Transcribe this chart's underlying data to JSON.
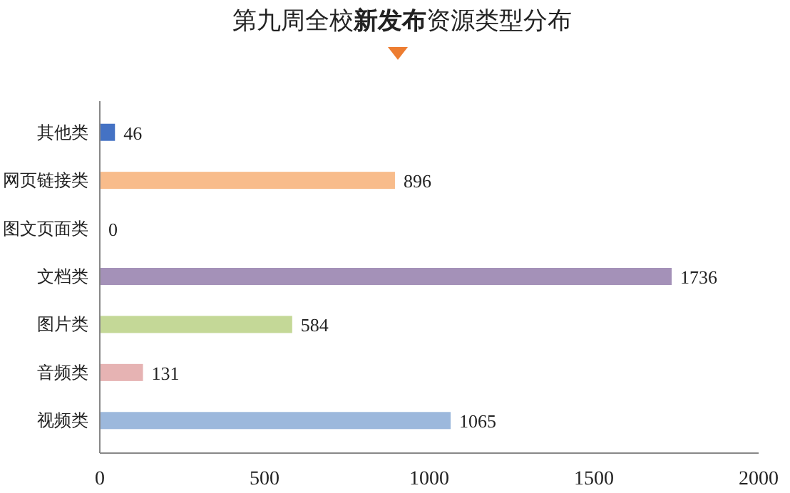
{
  "chart_data": {
    "type": "bar",
    "orientation": "horizontal",
    "title": "第九周全校**新发布**资源类型分布",
    "categories": [
      "其他类",
      "网页链接类",
      "图文页面类",
      "文档类",
      "图片类",
      "音频类",
      "视频类"
    ],
    "values": [
      46,
      896,
      0,
      1736,
      584,
      131,
      1065
    ],
    "colors": [
      "#4472c4",
      "#f8bc8b",
      "#a5a5a5",
      "#a491b8",
      "#c4d897",
      "#e6b3b3",
      "#9cb8dc"
    ],
    "xlim": [
      0,
      2000
    ],
    "xticks": [
      0,
      500,
      1000,
      1500,
      2000
    ],
    "data_labels": true,
    "grid": false
  }
}
